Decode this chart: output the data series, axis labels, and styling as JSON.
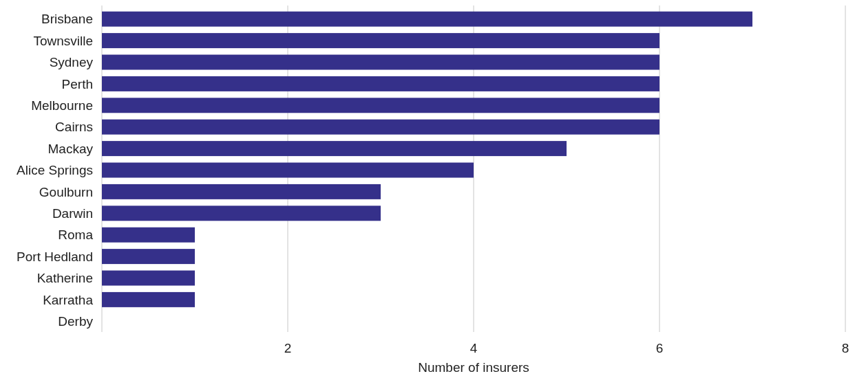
{
  "chart_data": {
    "type": "bar",
    "orientation": "horizontal",
    "xlabel": "Number of insurers",
    "categories": [
      "Brisbane",
      "Townsville",
      "Sydney",
      "Perth",
      "Melbourne",
      "Cairns",
      "Mackay",
      "Alice Springs",
      "Goulburn",
      "Darwin",
      "Roma",
      "Port Hedland",
      "Katherine",
      "Karratha",
      "Derby"
    ],
    "values": [
      7,
      6,
      6,
      6,
      6,
      6,
      5,
      4,
      3,
      3,
      1,
      1,
      1,
      1,
      0
    ],
    "color": "#35308a",
    "xlim": [
      0,
      8
    ],
    "xticks": [
      {
        "value": 0,
        "label": null
      },
      2,
      4,
      6,
      8
    ],
    "grid": "x"
  }
}
